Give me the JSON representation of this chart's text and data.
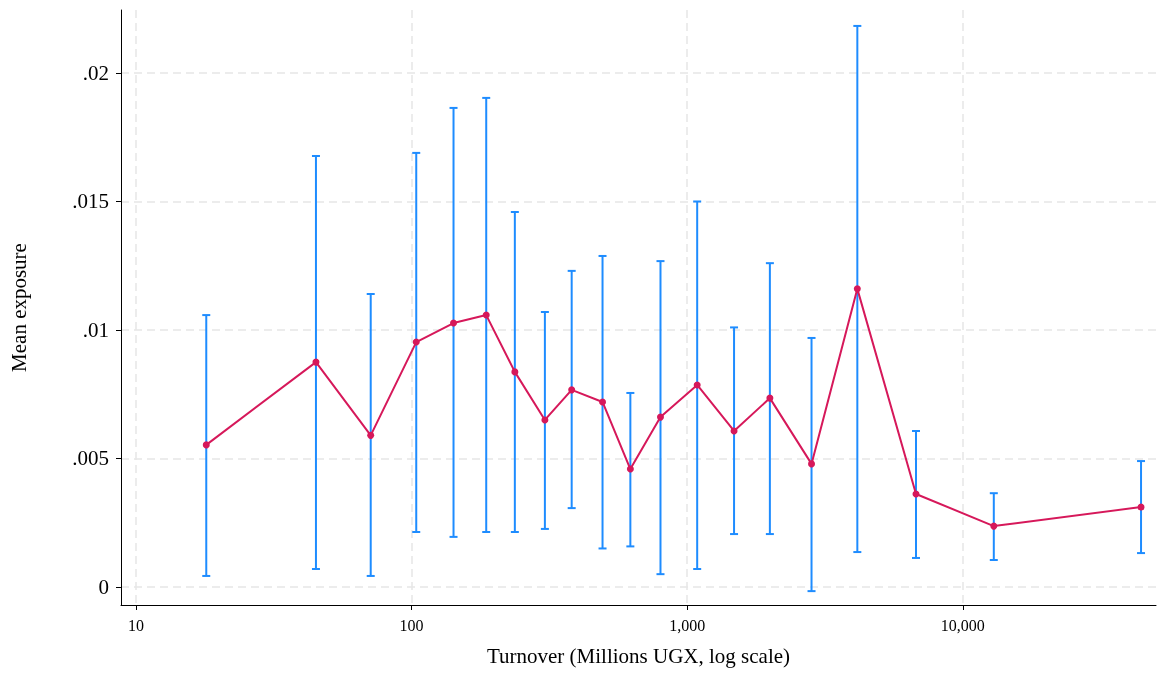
{
  "chart_data": {
    "type": "line",
    "xlabel": "Turnover (Millions UGX, log scale)",
    "ylabel": "Mean exposure",
    "x": [
      18.0,
      45.0,
      71.1,
      104,
      142,
      186.6,
      237,
      304.6,
      381,
      493,
      622,
      800,
      1087,
      1479,
      1995,
      2825,
      4142,
      6761,
      12950,
      44300
    ],
    "series": [
      {
        "color": "#d6185a",
        "values": [
          0.00553,
          0.00875,
          0.0059,
          0.00953,
          0.01027,
          0.01058,
          0.00837,
          0.0065,
          0.00767,
          0.0072,
          0.00459,
          0.00661,
          0.00786,
          0.00607,
          0.00735,
          0.00479,
          0.0116,
          0.00362,
          0.00237,
          0.00311
        ],
        "errors": [
          [
            0.00043,
            0.01058
          ],
          [
            0.0007,
            0.01677
          ],
          [
            0.00043,
            0.0114
          ],
          [
            0.00214,
            0.01689
          ],
          [
            0.00195,
            0.01864
          ],
          [
            0.00214,
            0.01903
          ],
          [
            0.00214,
            0.01459
          ],
          [
            0.00226,
            0.0107
          ],
          [
            0.00307,
            0.0123
          ],
          [
            0.0015,
            0.01288
          ],
          [
            0.00158,
            0.00755
          ],
          [
            0.0005,
            0.01268
          ],
          [
            0.0007,
            0.015
          ],
          [
            0.00206,
            0.0101
          ],
          [
            0.00206,
            0.0126
          ],
          [
            -0.00016,
            0.00969
          ],
          [
            0.00136,
            0.02183
          ],
          [
            0.00113,
            0.00607
          ],
          [
            0.00105,
            0.00365
          ],
          [
            0.00132,
            0.0049
          ]
        ]
      }
    ],
    "log": "x",
    "xlim": [
      8.83,
      50200
    ],
    "xticks": [
      10,
      100,
      {
        "value": 1000,
        "label": "1,000"
      },
      {
        "value": 10000,
        "label": "10,000"
      }
    ],
    "ylim": [
      -0.0007,
      0.02245
    ],
    "yticks": [
      {
        "value": 0,
        "label": "0"
      },
      {
        "value": 0.005,
        "label": ".005"
      },
      {
        "value": 0.01,
        "label": ".01"
      },
      {
        "value": 0.015,
        "label": ".015"
      },
      {
        "value": 0.02,
        "label": ".02"
      }
    ],
    "grid": true,
    "marker": "circle",
    "line_style": "solid"
  }
}
